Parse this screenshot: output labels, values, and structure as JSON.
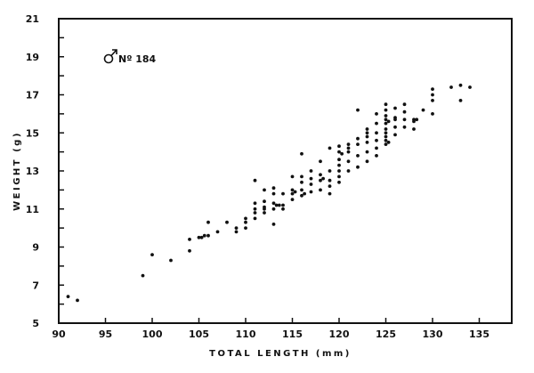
{
  "chart_data": {
    "type": "scatter",
    "title": "",
    "xlabel": "TOTAL LENGTH (mm)",
    "ylabel": "WEIGHT (g)",
    "xlim": [
      90,
      137
    ],
    "ylim": [
      5,
      21
    ],
    "xticks": [
      90,
      95,
      100,
      105,
      110,
      115,
      120,
      125,
      130,
      135
    ],
    "yticks": [
      5,
      7,
      9,
      11,
      13,
      15,
      17,
      19,
      21
    ],
    "grid": false,
    "legend": null,
    "annotations": [
      {
        "text": "♂ Nº 184",
        "x": 95,
        "y": 19
      }
    ],
    "series": [
      {
        "name": "Male No. 184",
        "points": [
          [
            91,
            6.4
          ],
          [
            92,
            6.2
          ],
          [
            99,
            7.5
          ],
          [
            100,
            8.6
          ],
          [
            102,
            8.3
          ],
          [
            104,
            8.8
          ],
          [
            104,
            9.4
          ],
          [
            105,
            9.5
          ],
          [
            105.3,
            9.5
          ],
          [
            105.6,
            9.6
          ],
          [
            106,
            9.6
          ],
          [
            106,
            10.3
          ],
          [
            107,
            9.8
          ],
          [
            108,
            10.3
          ],
          [
            109,
            10.0
          ],
          [
            109,
            9.8
          ],
          [
            110,
            10.3
          ],
          [
            110,
            10.0
          ],
          [
            110,
            10.5
          ],
          [
            111,
            12.5
          ],
          [
            111,
            11.3
          ],
          [
            111,
            10.8
          ],
          [
            111,
            10.5
          ],
          [
            111,
            11.0
          ],
          [
            112,
            12.0
          ],
          [
            112,
            11.4
          ],
          [
            112,
            11.0
          ],
          [
            112,
            10.8
          ],
          [
            112,
            11.1
          ],
          [
            113,
            11.8
          ],
          [
            113,
            11.3
          ],
          [
            113,
            11.0
          ],
          [
            113,
            10.2
          ],
          [
            113,
            12.1
          ],
          [
            113.3,
            11.2
          ],
          [
            113.6,
            11.2
          ],
          [
            114,
            11.0
          ],
          [
            114,
            11.2
          ],
          [
            114,
            11.8
          ],
          [
            115,
            12.0
          ],
          [
            115,
            11.8
          ],
          [
            115,
            11.5
          ],
          [
            115,
            12.7
          ],
          [
            115.3,
            11.9
          ],
          [
            116,
            13.9
          ],
          [
            116,
            12.7
          ],
          [
            116,
            12.4
          ],
          [
            116,
            12.0
          ],
          [
            116,
            11.7
          ],
          [
            116.3,
            11.8
          ],
          [
            117,
            13.0
          ],
          [
            117,
            12.6
          ],
          [
            117,
            12.3
          ],
          [
            117,
            11.9
          ],
          [
            118,
            13.5
          ],
          [
            118,
            12.8
          ],
          [
            118,
            12.5
          ],
          [
            118,
            12.0
          ],
          [
            118.3,
            12.6
          ],
          [
            119,
            14.2
          ],
          [
            119,
            13.0
          ],
          [
            119,
            12.5
          ],
          [
            119,
            12.2
          ],
          [
            119,
            11.8
          ],
          [
            120,
            14.3
          ],
          [
            120,
            14.0
          ],
          [
            120,
            13.6
          ],
          [
            120,
            13.3
          ],
          [
            120,
            13.0
          ],
          [
            120,
            12.7
          ],
          [
            120,
            12.4
          ],
          [
            120.3,
            13.9
          ],
          [
            121,
            14.4
          ],
          [
            121,
            14.0
          ],
          [
            121,
            13.5
          ],
          [
            121,
            13.0
          ],
          [
            121,
            14.2
          ],
          [
            122,
            16.2
          ],
          [
            122,
            14.7
          ],
          [
            122,
            14.4
          ],
          [
            122,
            13.8
          ],
          [
            122,
            13.2
          ],
          [
            123,
            15.2
          ],
          [
            123,
            14.8
          ],
          [
            123,
            14.5
          ],
          [
            123,
            14.0
          ],
          [
            123,
            13.5
          ],
          [
            123,
            15.0
          ],
          [
            124,
            16.0
          ],
          [
            124,
            15.5
          ],
          [
            124,
            15.0
          ],
          [
            124,
            14.6
          ],
          [
            124,
            14.2
          ],
          [
            124,
            13.8
          ],
          [
            125,
            16.5
          ],
          [
            125,
            16.2
          ],
          [
            125,
            15.9
          ],
          [
            125,
            15.7
          ],
          [
            125,
            15.5
          ],
          [
            125,
            15.2
          ],
          [
            125,
            15.0
          ],
          [
            125,
            14.8
          ],
          [
            125,
            14.6
          ],
          [
            125,
            14.4
          ],
          [
            125.3,
            15.6
          ],
          [
            125.3,
            14.5
          ],
          [
            126,
            16.3
          ],
          [
            126,
            15.8
          ],
          [
            126,
            15.7
          ],
          [
            126,
            15.3
          ],
          [
            126,
            14.9
          ],
          [
            127,
            16.5
          ],
          [
            127,
            16.1
          ],
          [
            127,
            15.7
          ],
          [
            127,
            15.3
          ],
          [
            128,
            15.7
          ],
          [
            128,
            15.6
          ],
          [
            128,
            15.2
          ],
          [
            128.3,
            15.7
          ],
          [
            129,
            16.2
          ],
          [
            130,
            17.3
          ],
          [
            130,
            17.0
          ],
          [
            130,
            16.7
          ],
          [
            130,
            16.0
          ],
          [
            132,
            17.4
          ],
          [
            133,
            17.5
          ],
          [
            133,
            16.7
          ],
          [
            134,
            17.4
          ]
        ]
      }
    ]
  }
}
